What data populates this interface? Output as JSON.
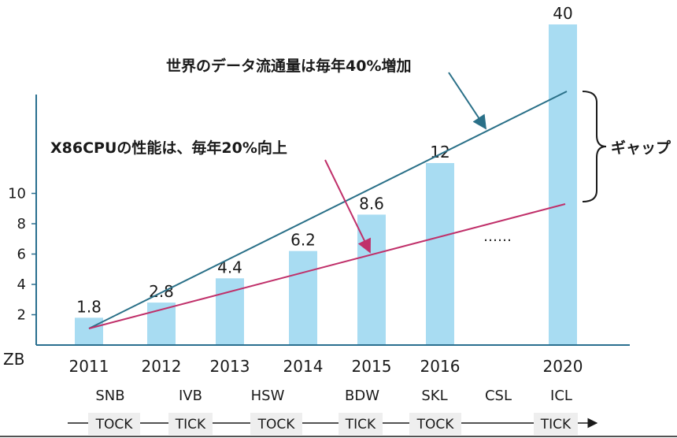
{
  "chart_data": {
    "type": "bar",
    "categories": [
      "2011",
      "2012",
      "2013",
      "2014",
      "2015",
      "2016",
      "2020"
    ],
    "values": [
      1.8,
      2.8,
      4.4,
      6.2,
      8.6,
      12,
      40
    ],
    "value_labels": [
      "1.8",
      "2.8",
      "4.4",
      "6.2",
      "8.6",
      "12",
      "40"
    ],
    "ylabel": "ZB",
    "yticks": [
      2,
      4,
      6,
      8,
      10
    ],
    "bar_color": "#a8dcf2",
    "value_label_color_top": "#7a7a7a",
    "codenames": [
      "SNB",
      "IVB",
      "HSW",
      "BDW",
      "SKL",
      "CSL",
      "ICL"
    ],
    "cadence": [
      "TOCK",
      "TICK",
      "TOCK",
      "TICK",
      "TOCK",
      "TICK"
    ],
    "ellipsis": "……",
    "trend_lines": [
      {
        "label": "世界のデータ流通量は毎年40%増加",
        "color": "#2a7088"
      },
      {
        "label": "X86CPUの性能は、毎年20%向上",
        "color": "#c0306a"
      }
    ],
    "gap_label": "ギャップ"
  }
}
